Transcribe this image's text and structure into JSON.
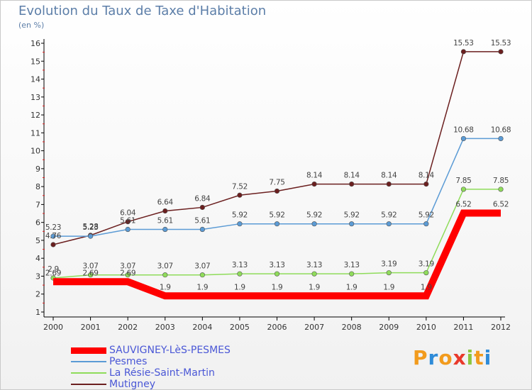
{
  "chart_data": {
    "type": "line",
    "title": "Evolution du Taux de Taxe d'Habitation",
    "unit_label": "(en %)",
    "x": [
      "2000",
      "2001",
      "2002",
      "2003",
      "2004",
      "2005",
      "2006",
      "2007",
      "2008",
      "2009",
      "2010",
      "2011",
      "2012"
    ],
    "ylim": [
      1,
      16
    ],
    "yticks": [
      1,
      2,
      3,
      4,
      5,
      6,
      7,
      8,
      9,
      10,
      11,
      12,
      13,
      14,
      15,
      16
    ],
    "grid": false,
    "legend_position": "bottom-left",
    "series": [
      {
        "name": "SAUVIGNEY-LèS-PESMES",
        "color": "#ff0000",
        "values": [
          2.69,
          2.69,
          2.69,
          1.9,
          1.9,
          1.9,
          1.9,
          1.9,
          1.9,
          1.9,
          1.9,
          6.52,
          6.52
        ],
        "labels": [
          "2.69",
          "2.69",
          "2.69",
          "1.9",
          "1.9",
          "1.9",
          "1.9",
          "1.9",
          "1.9",
          "1.9",
          "1.9",
          "6.52",
          "6.52"
        ]
      },
      {
        "name": "Pesmes",
        "color": "#5b9bd5",
        "values": [
          5.23,
          5.23,
          5.61,
          5.61,
          5.61,
          5.92,
          5.92,
          5.92,
          5.92,
          5.92,
          5.92,
          10.68,
          10.68
        ],
        "labels": [
          "5.23",
          "5.23",
          "5.61",
          "5.61",
          "5.61",
          "5.92",
          "5.92",
          "5.92",
          "5.92",
          "5.92",
          "5.92",
          "10.68",
          "10.68"
        ]
      },
      {
        "name": "La Résie-Saint-Martin",
        "color": "#8fdc5a",
        "values": [
          2.9,
          3.07,
          3.07,
          3.07,
          3.07,
          3.13,
          3.13,
          3.13,
          3.13,
          3.19,
          3.19,
          7.85,
          7.85
        ],
        "labels": [
          "2.9",
          "3.07",
          "3.07",
          "3.07",
          "3.07",
          "3.13",
          "3.13",
          "3.13",
          "3.13",
          "3.19",
          "3.19",
          "7.85",
          "7.85"
        ]
      },
      {
        "name": "Mutigney",
        "color": "#6b1f1f",
        "values": [
          4.76,
          5.28,
          6.04,
          6.64,
          6.84,
          7.52,
          7.75,
          8.14,
          8.14,
          8.14,
          8.14,
          15.53,
          15.53
        ],
        "labels": [
          "4.76",
          "5.28",
          "6.04",
          "6.64",
          "6.84",
          "7.52",
          "7.75",
          "8.14",
          "8.14",
          "8.14",
          "8.14",
          "15.53",
          "15.53"
        ]
      }
    ]
  },
  "logo": {
    "letters": [
      "P",
      "r",
      "o",
      "x",
      "i",
      "t",
      "i"
    ],
    "colors": [
      "#f29b1d",
      "#2e8bd8",
      "#f29b1d",
      "#e9392b",
      "#8cc63e",
      "#f29b1d",
      "#2e8bd8"
    ]
  }
}
